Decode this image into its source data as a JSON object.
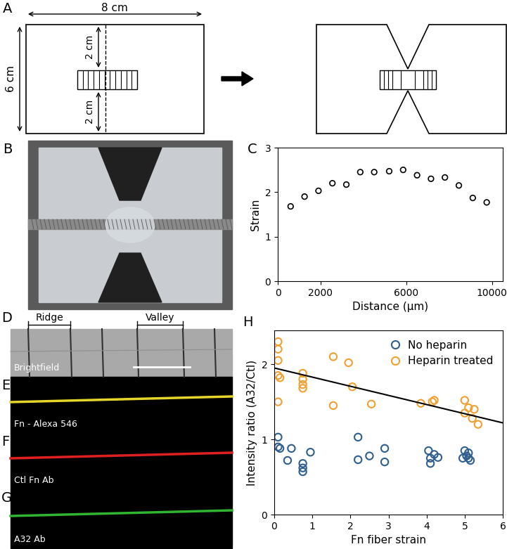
{
  "panel_labels": [
    "A",
    "B",
    "C",
    "D",
    "E",
    "F",
    "G",
    "H"
  ],
  "diagram": {
    "width_label": "8 cm",
    "height_label": "6 cm",
    "gap_labels": [
      "2 cm",
      "2 cm"
    ]
  },
  "micrographs": {
    "region_labels": [
      "Ridge",
      "Valley"
    ],
    "channels": [
      {
        "label": "Brightfield",
        "color": "#a9a9a9"
      },
      {
        "label": "Fn - Alexa 546",
        "color": "#e6d62a"
      },
      {
        "label": "Ctl Fn Ab",
        "color": "#e02020"
      },
      {
        "label": "A32 Ab",
        "color": "#2fb52f"
      }
    ]
  },
  "chart_data": [
    {
      "type": "scatter",
      "x_label": "Distance (μm)",
      "y_label": "Strain",
      "x": [
        600,
        1250,
        1900,
        2550,
        3200,
        3850,
        4500,
        5200,
        5850,
        6500,
        7150,
        7800,
        8450,
        9100,
        9750
      ],
      "values": [
        1.68,
        1.9,
        2.03,
        2.2,
        2.17,
        2.45,
        2.45,
        2.47,
        2.5,
        2.38,
        2.3,
        2.33,
        2.15,
        1.87,
        1.77
      ],
      "color": "#000000",
      "marker": "circle",
      "xlim": [
        0,
        10500
      ],
      "ylim": [
        0,
        3
      ],
      "xticks": [
        0,
        2000,
        6000,
        10000
      ],
      "yticks": [
        0,
        1,
        2,
        3
      ]
    },
    {
      "type": "scatter",
      "x_label": "Fn fiber strain",
      "y_label": "Intensity ratio (A32/Ctl)",
      "series": [
        {
          "name": "No heparin",
          "color": "#2f5f8f",
          "marker": "circle",
          "x": [
            0.1,
            0.1,
            0.15,
            0.35,
            0.45,
            0.75,
            0.75,
            0.75,
            0.95,
            2.2,
            2.2,
            2.5,
            2.9,
            2.9,
            4.05,
            4.1,
            4.1,
            4.2,
            4.3,
            5.0,
            5.05,
            5.1,
            5.15,
            4.95,
            5.1
          ],
          "values": [
            1.03,
            0.9,
            0.88,
            0.72,
            0.88,
            0.68,
            0.62,
            0.57,
            0.83,
            1.03,
            0.73,
            0.78,
            0.88,
            0.7,
            0.85,
            0.75,
            0.68,
            0.8,
            0.76,
            0.85,
            0.78,
            0.75,
            0.72,
            0.75,
            0.82
          ]
        },
        {
          "name": "Heparin treated",
          "color": "#f0a030",
          "marker": "circle",
          "x": [
            0.1,
            0.1,
            0.1,
            0.1,
            0.15,
            0.1,
            0.75,
            0.75,
            0.75,
            0.75,
            1.55,
            1.55,
            1.95,
            2.05,
            2.55,
            3.85,
            4.15,
            4.2,
            5.0,
            5.0,
            5.1,
            5.2,
            5.25,
            5.35
          ],
          "values": [
            2.3,
            2.2,
            2.05,
            1.85,
            1.82,
            1.5,
            1.88,
            1.8,
            1.73,
            1.68,
            2.1,
            1.45,
            2.02,
            1.7,
            1.47,
            1.48,
            1.5,
            1.52,
            1.52,
            1.35,
            1.42,
            1.28,
            1.4,
            1.2
          ]
        },
        {
          "type": "line",
          "color": "#000000",
          "x": [
            0,
            6
          ],
          "values": [
            1.95,
            1.22
          ]
        }
      ],
      "legend": "upper right",
      "xlim": [
        0,
        6
      ],
      "ylim": [
        0,
        2.45
      ],
      "xticks": [
        0,
        1,
        2,
        3,
        4,
        5,
        6
      ],
      "yticks": [
        0,
        1,
        2
      ]
    }
  ]
}
